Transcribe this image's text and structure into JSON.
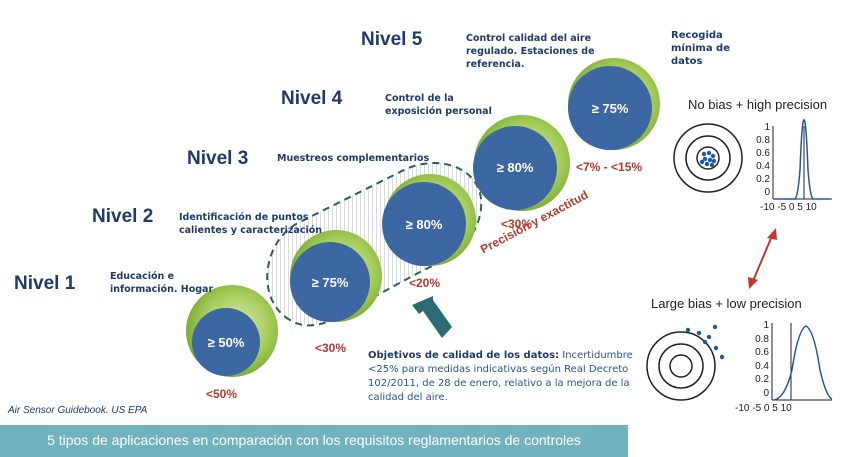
{
  "levels": [
    {
      "name": "Nivel 1",
      "description": "Educación e información. Hogar",
      "circle_value": "≥ 50%",
      "error_label": "<50%"
    },
    {
      "name": "Nivel 2",
      "description": "Identificación de puntos calientes y caracterización",
      "circle_value": "≥ 75%",
      "error_label": "<30%"
    },
    {
      "name": "Nivel 3",
      "description": "Muestreos complementarios",
      "circle_value": "≥ 80%",
      "error_label": "<20%"
    },
    {
      "name": "Nivel 4",
      "description": "Control de la exposición personal",
      "circle_value": "≥ 80%",
      "error_label": "<30%"
    },
    {
      "name": "Nivel 5",
      "description": "Control calidad del aire regulado. Estaciones de referencia.",
      "circle_value": "≥ 75%",
      "error_label": "<7% - <15%"
    }
  ],
  "corner_note": "Recogida mínima de datos",
  "diagonal_label": "Precisión y exactitud",
  "objectives": {
    "title": "Objetivos de calidad de los datos:",
    "text": "Incertidumbre <25% para medidas indicativas según Real Decreto 102/2011, de 28 de enero, relativo a la mejora de la calidad del aire."
  },
  "source": "Air Sensor Guidebook. US EPA",
  "footer": "5 tipos de aplicaciones en comparación con los requisitos reglamentarios de controles",
  "panels": [
    {
      "title": "No bias + high precision",
      "y_ticks": [
        "1",
        "0.8",
        "0.6",
        "0.4",
        "0.2",
        "0"
      ],
      "x_ticks": [
        "-10",
        "-5",
        "0",
        "5",
        "10"
      ]
    },
    {
      "title": "Large bias + low precision",
      "y_ticks": [
        "1",
        "0.8",
        "0.6",
        "0.4",
        "0.2",
        "0"
      ],
      "x_ticks": [
        "-10",
        "-5",
        "0",
        "5",
        "10"
      ]
    }
  ],
  "colors": {
    "circle_fill": "#3c67a3",
    "ring_green": "#8dbf3c",
    "level_text": "#1f3a6b",
    "error_text": "#b23a2e",
    "footer_bg": "#70b3bf",
    "dashed_outline": "#2e5f5f",
    "arrow": "#2c6b73",
    "red_arrow": "#c0392b"
  }
}
